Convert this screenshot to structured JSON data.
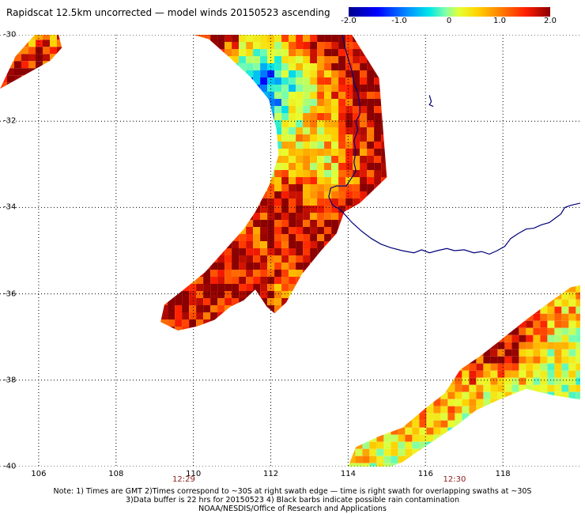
{
  "title": "Rapidscat 12.5km uncorrected — model winds 20150523 ascending",
  "colorbar": {
    "ticks": [
      "-2.0",
      "-1.0",
      "0",
      "1.0",
      "2.0"
    ],
    "tick_values": [
      -2.0,
      -1.0,
      0,
      1.0,
      2.0
    ],
    "min": -2.0,
    "max": 2.0,
    "colors": [
      "#00008b",
      "#0000ff",
      "#0096ff",
      "#00e6e6",
      "#80ffaa",
      "#e6ff33",
      "#ffd200",
      "#ff7a00",
      "#ff1e00",
      "#8b0000"
    ]
  },
  "map": {
    "lon_range": [
      105,
      120
    ],
    "lat_range": [
      -40,
      -30
    ],
    "lat_ticks": [
      "-30",
      "-32",
      "-34",
      "-36",
      "-38",
      "-40"
    ],
    "lat_tick_values": [
      -30,
      -32,
      -34,
      -36,
      -38,
      -40
    ],
    "lon_ticks": [
      "106",
      "108",
      "110",
      "112",
      "114",
      "116",
      "118"
    ],
    "lon_tick_values": [
      106,
      108,
      110,
      112,
      114,
      116,
      118
    ],
    "grid": true,
    "coastline_color": "#00007a",
    "coastline": [
      [
        113.85,
        -30
      ],
      [
        113.92,
        -30.3
      ],
      [
        114.0,
        -30.55
      ],
      [
        114.1,
        -30.85
      ],
      [
        114.15,
        -31.1
      ],
      [
        114.25,
        -31.35
      ],
      [
        114.3,
        -31.6
      ],
      [
        114.3,
        -31.85
      ],
      [
        114.2,
        -32.0
      ],
      [
        114.25,
        -32.2
      ],
      [
        114.15,
        -32.45
      ],
      [
        114.2,
        -32.7
      ],
      [
        114.15,
        -32.95
      ],
      [
        114.2,
        -33.15
      ],
      [
        114.1,
        -33.3
      ],
      [
        113.95,
        -33.5
      ],
      [
        113.7,
        -33.5
      ],
      [
        113.55,
        -33.55
      ],
      [
        113.5,
        -33.75
      ],
      [
        113.6,
        -33.95
      ],
      [
        113.8,
        -34.05
      ],
      [
        113.95,
        -34.2
      ],
      [
        114.1,
        -34.35
      ],
      [
        114.35,
        -34.55
      ],
      [
        114.6,
        -34.72
      ],
      [
        114.85,
        -34.85
      ],
      [
        115.1,
        -34.93
      ],
      [
        115.4,
        -35.0
      ],
      [
        115.7,
        -35.05
      ],
      [
        115.9,
        -34.98
      ],
      [
        116.1,
        -35.05
      ],
      [
        116.3,
        -35.0
      ],
      [
        116.55,
        -34.95
      ],
      [
        116.75,
        -35.0
      ],
      [
        117.0,
        -34.98
      ],
      [
        117.25,
        -35.05
      ],
      [
        117.45,
        -35.02
      ],
      [
        117.65,
        -35.08
      ],
      [
        117.85,
        -35.0
      ],
      [
        118.05,
        -34.9
      ],
      [
        118.2,
        -34.72
      ],
      [
        118.4,
        -34.6
      ],
      [
        118.6,
        -34.5
      ],
      [
        118.8,
        -34.48
      ],
      [
        119.0,
        -34.4
      ],
      [
        119.2,
        -34.35
      ],
      [
        119.35,
        -34.25
      ],
      [
        119.5,
        -34.15
      ],
      [
        119.6,
        -34.0
      ],
      [
        119.75,
        -33.95
      ],
      [
        120,
        -33.9
      ]
    ],
    "island": [
      [
        116.1,
        -31.4
      ],
      [
        116.15,
        -31.55
      ],
      [
        116.1,
        -31.62
      ],
      [
        116.2,
        -31.66
      ]
    ]
  },
  "swaths": [
    {
      "label": "12:29",
      "lon": 109.75,
      "t": 0.52,
      "pts": [
        [
          105.0,
          -31.25
        ],
        [
          105.4,
          -30.5
        ],
        [
          105.9,
          -30.0
        ],
        [
          106.5,
          -29.95
        ],
        [
          106.6,
          -30.3
        ],
        [
          106.3,
          -30.6
        ]
      ],
      "vals": [
        [
          -0.8,
          0.4,
          0.9,
          1.2
        ],
        [
          0.3,
          1.5,
          1.8,
          1.1
        ],
        [
          1.6,
          2.0,
          1.3,
          0.6
        ],
        [
          0.9,
          1.7,
          0.2,
          -0.4
        ]
      ]
    },
    {
      "label": "",
      "lon": 112.5,
      "t": 0.5,
      "pts": [
        [
          110.0,
          -30.0
        ],
        [
          114.1,
          -30.0
        ],
        [
          114.8,
          -31.0
        ],
        [
          115.0,
          -33.3
        ],
        [
          114.3,
          -33.9
        ],
        [
          113.9,
          -34.1
        ],
        [
          113.7,
          -34.6
        ],
        [
          113.3,
          -35.0
        ],
        [
          112.8,
          -35.55
        ],
        [
          112.4,
          -36.2
        ],
        [
          112.1,
          -36.45
        ],
        [
          111.9,
          -36.3
        ],
        [
          111.6,
          -35.9
        ],
        [
          111.3,
          -36.15
        ],
        [
          110.95,
          -36.3
        ],
        [
          110.55,
          -36.6
        ],
        [
          110.1,
          -36.75
        ],
        [
          109.6,
          -36.85
        ],
        [
          109.15,
          -36.65
        ],
        [
          109.25,
          -36.25
        ],
        [
          109.75,
          -35.9
        ],
        [
          110.3,
          -35.5
        ],
        [
          110.8,
          -35.0
        ],
        [
          111.3,
          -34.5
        ],
        [
          111.6,
          -34.1
        ],
        [
          111.95,
          -33.5
        ],
        [
          112.2,
          -32.8
        ],
        [
          112.15,
          -32.2
        ],
        [
          111.95,
          -31.5
        ],
        [
          111.5,
          -31.0
        ],
        [
          110.9,
          -30.5
        ],
        [
          110.4,
          -30.1
        ]
      ],
      "vals": [
        [
          1.8,
          2.0,
          1.6,
          0.4,
          1.2,
          2.0,
          1.9,
          2.0
        ],
        [
          1.1,
          0.3,
          -0.7,
          -1.6,
          -0.3,
          1.0,
          2.0,
          2.0
        ],
        [
          1.5,
          0.6,
          -0.2,
          -0.9,
          0.2,
          0.8,
          1.7,
          2.0
        ],
        [
          1.9,
          1.2,
          0.5,
          0.1,
          0.9,
          0.4,
          1.3,
          2.0
        ],
        [
          2.0,
          1.7,
          1.0,
          1.5,
          2.0,
          1.1,
          1.8,
          2.0
        ],
        [
          1.2,
          2.0,
          1.9,
          1.3,
          2.0,
          2.0,
          2.0,
          1.9
        ],
        [
          2.0,
          1.6,
          2.0,
          1.8,
          0.9,
          2.0,
          1.5,
          0.6
        ],
        [
          1.4,
          2.0,
          1.1,
          2.0,
          1.7,
          0.8,
          0.2,
          -0.3
        ]
      ]
    },
    {
      "label": "12:30",
      "lon": 116.75,
      "t": 0.3,
      "pts": [
        [
          114.0,
          -40.0
        ],
        [
          114.2,
          -39.55
        ],
        [
          114.8,
          -39.3
        ],
        [
          115.4,
          -39.1
        ],
        [
          116.0,
          -38.65
        ],
        [
          116.5,
          -38.3
        ],
        [
          116.9,
          -37.75
        ],
        [
          117.4,
          -37.45
        ],
        [
          117.9,
          -37.1
        ],
        [
          118.6,
          -36.6
        ],
        [
          119.2,
          -36.2
        ],
        [
          119.75,
          -35.85
        ],
        [
          120,
          -35.8
        ],
        [
          120,
          -38.45
        ],
        [
          119.3,
          -38.35
        ],
        [
          118.6,
          -38.2
        ],
        [
          117.9,
          -38.45
        ],
        [
          117.3,
          -38.7
        ],
        [
          116.8,
          -39.05
        ],
        [
          116.3,
          -39.35
        ],
        [
          115.8,
          -39.65
        ],
        [
          115.4,
          -39.9
        ],
        [
          115.1,
          -40.0
        ]
      ],
      "vals": [
        [
          -1.9,
          -0.8,
          0.3,
          0.8,
          1.6,
          1.9,
          1.2,
          0.9
        ],
        [
          -1.2,
          -0.2,
          0.6,
          1.4,
          2.0,
          1.6,
          0.4,
          -0.1
        ],
        [
          0.2,
          0.9,
          1.3,
          0.7,
          0.1,
          -0.4,
          -0.3,
          0.3
        ],
        [
          0.6,
          0.2,
          -0.3,
          -0.6,
          0.0,
          0.5,
          1.0,
          0.2
        ]
      ]
    }
  ],
  "note_lines": [
    "Note: 1) Times are GMT 2)Times correspond to ~30S at right swath edge — time is right swath for overlapping swaths at ~30S",
    "3)Data buffer is 22 hrs for 20150523 4) Black barbs indicate possible rain contamination",
    "NOAA/NESDIS/Office of Research and Applications"
  ]
}
